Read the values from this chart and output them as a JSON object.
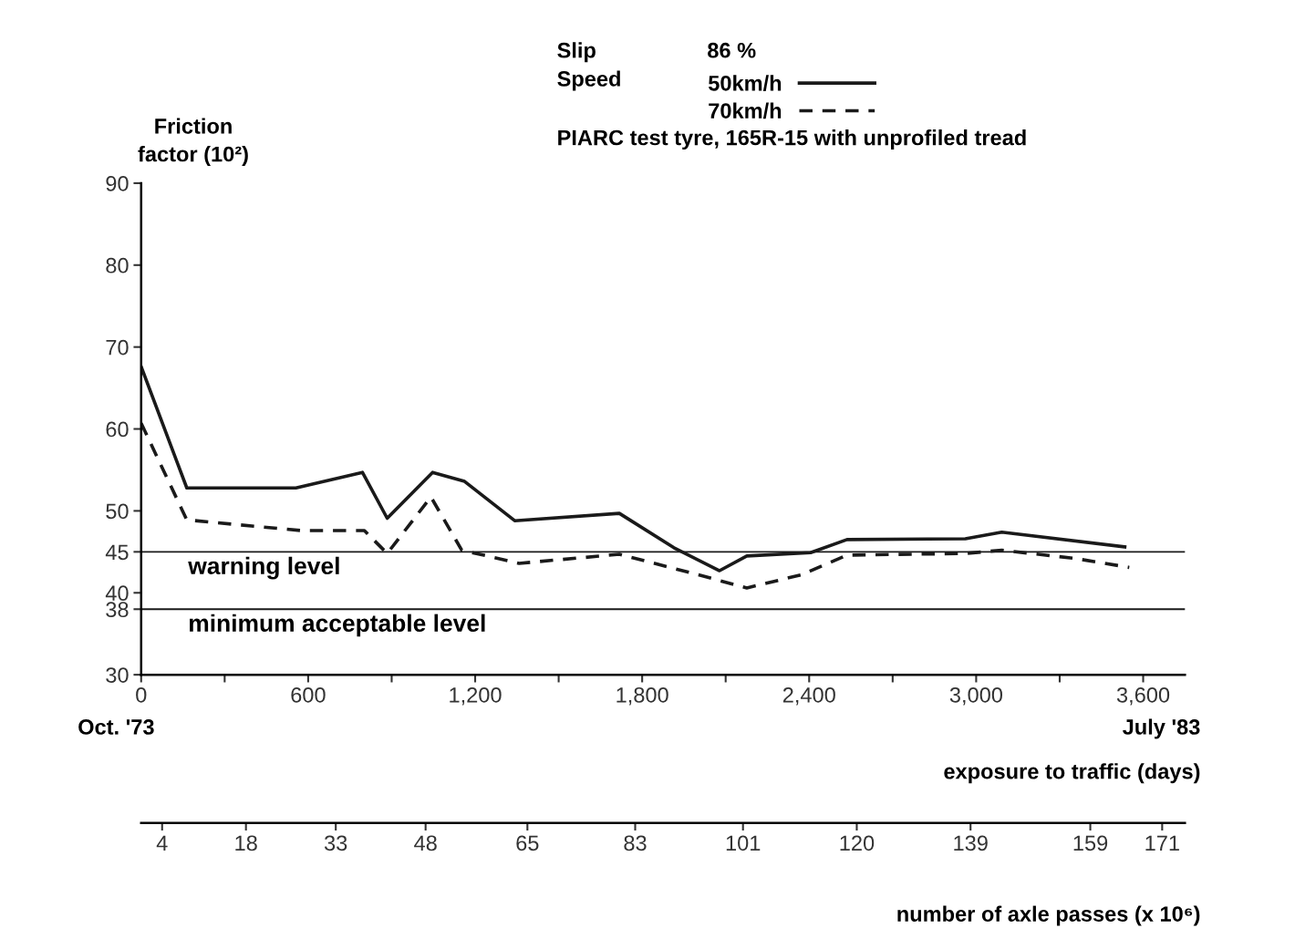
{
  "chart_data": {
    "type": "line",
    "ylabel": "Friction factor (10²)",
    "xlabel": "exposure to traffic (days)",
    "x2label": "number of axle passes (x 10⁶)",
    "annotations": [
      "Slip",
      "86 %",
      "Speed",
      "PIARC test tyre, 165R-15 with unprofiled tread",
      "Oct. '73",
      "July '83"
    ],
    "series": [
      {
        "name": "50km/h",
        "color": "#1a1a1a",
        "line_style": "solid",
        "x": [
          0,
          164,
          556,
          795,
          884,
          1047,
          1162,
          1342,
          1718,
          1914,
          2078,
          2176,
          2405,
          2536,
          2961,
          3092,
          3534
        ],
        "values": [
          67.6,
          52.8,
          52.8,
          54.7,
          49.1,
          54.7,
          53.6,
          48.8,
          49.7,
          45.5,
          42.7,
          44.5,
          44.9,
          46.5,
          46.6,
          47.4,
          45.6
        ]
      },
      {
        "name": "70km/h",
        "color": "#1a1a1a",
        "line_style": "dashed",
        "x": [
          0,
          164,
          573,
          802,
          884,
          1041,
          1152,
          1358,
          1718,
          1980,
          2176,
          2372,
          2536,
          2961,
          3092,
          3354,
          3550
        ],
        "values": [
          60.7,
          48.9,
          47.6,
          47.6,
          44.8,
          51.7,
          45.2,
          43.6,
          44.7,
          42.4,
          40.6,
          42.2,
          44.6,
          44.8,
          45.2,
          44.2,
          43.1
        ]
      }
    ],
    "xlim": [
      0,
      3750
    ],
    "xticks": [
      0,
      {
        "value": 300,
        "label": null
      },
      600,
      {
        "value": 900,
        "label": null
      },
      {
        "value": 1200,
        "label": "1,200"
      },
      {
        "value": 1500,
        "label": null
      },
      {
        "value": 1800,
        "label": "1,800"
      },
      {
        "value": 2100,
        "label": null
      },
      {
        "value": 2400,
        "label": "2,400"
      },
      {
        "value": 2700,
        "label": null
      },
      {
        "value": 3000,
        "label": "3,000"
      },
      {
        "value": 3300,
        "label": null
      },
      {
        "value": 3600,
        "label": "3,600"
      }
    ],
    "x2lim": [
      0.5,
      174.8
    ],
    "x2ticks": [
      4,
      18,
      33,
      48,
      65,
      83,
      101,
      120,
      139,
      159,
      171
    ],
    "ylim": [
      30,
      90
    ],
    "yticks": [
      30,
      38,
      40,
      45,
      50,
      60,
      70,
      80,
      90
    ],
    "ref_lines": [
      {
        "axis": "y",
        "value": 45,
        "label": "warning level",
        "color": "#1a1a1a"
      },
      {
        "axis": "y",
        "value": 38,
        "label": "minimum acceptable level",
        "color": "#1a1a1a"
      }
    ],
    "grid": false,
    "legend": "top right"
  }
}
